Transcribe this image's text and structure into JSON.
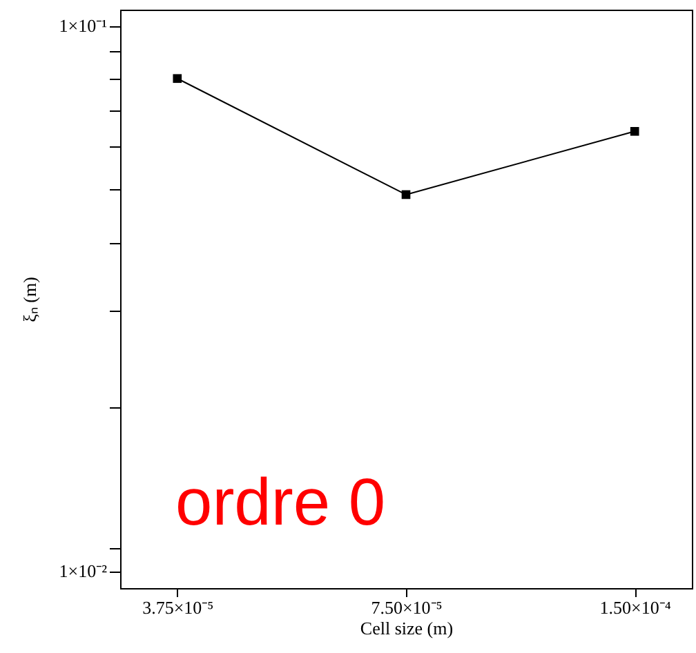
{
  "chart_data": {
    "type": "line",
    "xlabel": "Cell size (m)",
    "ylabel": "ξₙ (m)",
    "categories": [
      "3.75×10⁻⁵",
      "7.50×10⁻⁵",
      "1.50×10⁻⁴"
    ],
    "series": [
      {
        "color": "#000000",
        "values": [
          0.08,
          0.049,
          0.064
        ]
      }
    ],
    "marker": "square",
    "line_style": "solid",
    "log": true,
    "grid": false,
    "ylim": [
      0.0093,
      0.107
    ],
    "yticks": [
      {
        "value": 0.01,
        "label": "1×10⁻²"
      },
      {
        "value": 0.011,
        "label": null
      },
      {
        "value": 0.02,
        "label": null
      },
      {
        "value": 0.03,
        "label": null
      },
      {
        "value": 0.04,
        "label": null
      },
      {
        "value": 0.05,
        "label": null
      },
      {
        "value": 0.06,
        "label": null
      },
      {
        "value": 0.07,
        "label": null
      },
      {
        "value": 0.08,
        "label": null
      },
      {
        "value": 0.09,
        "label": null
      },
      {
        "value": 0.1,
        "label": "1×10⁻¹"
      }
    ],
    "annotations": [
      "ordre 0"
    ]
  }
}
